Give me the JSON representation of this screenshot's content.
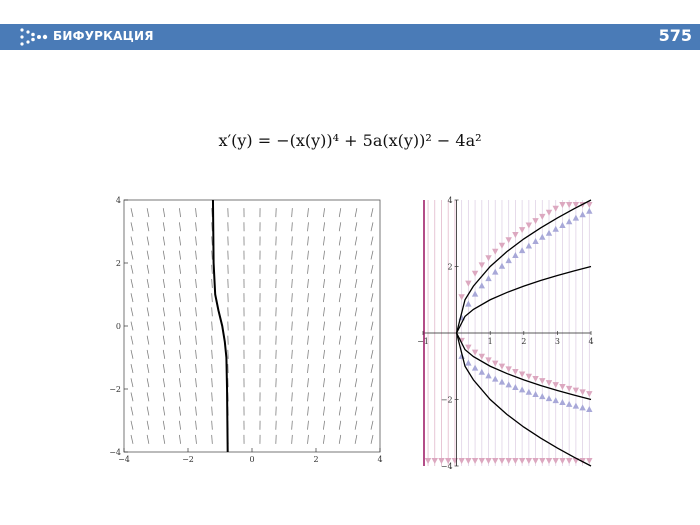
{
  "header": {
    "title": "БИФУРКАЦИЯ",
    "page_number": "575",
    "bar_color": "#4a7bb7"
  },
  "formula": {
    "lhs": "x′(y)",
    "text": "x′(y) = −(x(y))⁴ + 5a(x(y))² − 4a²"
  },
  "chart_data": [
    {
      "type": "line",
      "plot_kind": "slope field with solution curve",
      "xlim": [
        -4,
        4
      ],
      "ylim": [
        -4,
        4
      ],
      "x_ticks": [
        "−4",
        "−2",
        "0",
        "2",
        "4"
      ],
      "y_ticks": [
        "−4",
        "−2",
        "0",
        "2",
        "4"
      ],
      "field_color": "#808080",
      "curve_color": "#000000",
      "series": [
        {
          "x": [
            -1.22,
            -1.21,
            -1.2,
            -1.15,
            -1.05,
            -0.93,
            -0.85,
            -0.8,
            -0.78,
            -0.76
          ],
          "y": [
            4,
            3,
            2,
            1,
            0.5,
            0,
            -0.5,
            -1,
            -2,
            -4
          ]
        }
      ]
    },
    {
      "type": "line",
      "plot_kind": "bifurcation diagram with phase arrows",
      "xlim": [
        -1,
        4
      ],
      "ylim": [
        -4,
        4
      ],
      "x_ticks": [
        "−1",
        "1",
        "2",
        "3",
        "4"
      ],
      "y_ticks": [
        "−4",
        "−2",
        "2",
        "4"
      ],
      "up_arrow_color": "#a8a8d8",
      "down_arrow_color": "#dca8c0",
      "vertical_line_color": "#a0206a",
      "curve_color": "#000000",
      "series": [
        {
          "x": [
            0,
            0.25,
            0.5,
            1,
            1.5,
            2,
            2.5,
            3,
            3.5,
            4
          ],
          "y": [
            0,
            1,
            1.41,
            2,
            2.45,
            2.83,
            3.16,
            3.46,
            3.74,
            4
          ]
        },
        {
          "x": [
            0,
            0.25,
            0.5,
            1,
            1.5,
            2,
            2.5,
            3,
            3.5,
            4
          ],
          "y": [
            0,
            0.5,
            0.71,
            1,
            1.22,
            1.41,
            1.58,
            1.73,
            1.87,
            2
          ]
        },
        {
          "x": [
            0,
            0.25,
            0.5,
            1,
            1.5,
            2,
            2.5,
            3,
            3.5,
            4
          ],
          "y": [
            0,
            -0.5,
            -0.71,
            -1,
            -1.22,
            -1.41,
            -1.58,
            -1.73,
            -1.87,
            -2
          ]
        },
        {
          "x": [
            0,
            0.25,
            0.5,
            1,
            1.5,
            2,
            2.5,
            3,
            3.5,
            4
          ],
          "y": [
            0,
            -1,
            -1.41,
            -2,
            -2.45,
            -2.83,
            -3.16,
            -3.46,
            -3.74,
            -4
          ]
        }
      ]
    }
  ]
}
